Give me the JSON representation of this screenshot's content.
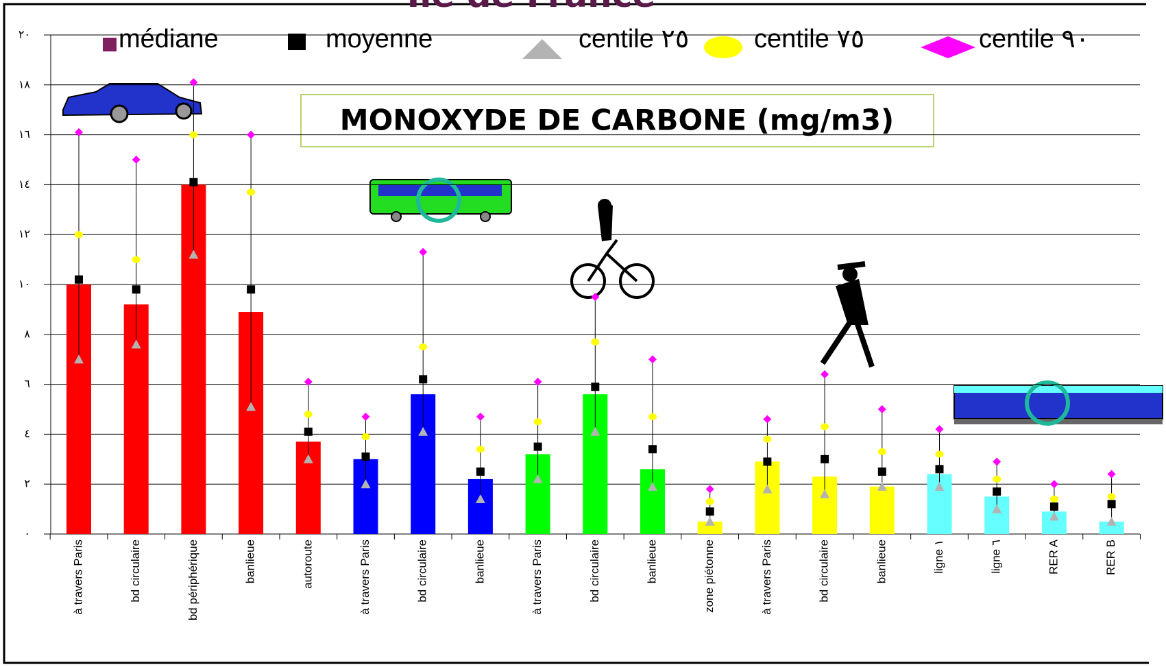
{
  "chart_data": {
    "type": "bar",
    "title": "Ile de France",
    "subtitle": "MONOXYDE DE CARBONE (mg/m3)",
    "categories": [
      "à travers Paris",
      "bd circulaire",
      "bd périphérique",
      "banlieue",
      "autoroute",
      "à travers Paris",
      "bd circulaire",
      "banlieue",
      "à travers Paris",
      "bd circulaire",
      "banlieue",
      "zone piétonne",
      "à travers Paris",
      "bd circulaire",
      "banlieue",
      "ligne ١",
      "ligne ٦",
      "RER A",
      "RER B"
    ],
    "bar_colors": [
      "#ff0000",
      "#ff0000",
      "#ff0000",
      "#ff0000",
      "#ff0000",
      "#0000ff",
      "#0000ff",
      "#0000ff",
      "#00ff00",
      "#00ff00",
      "#00ff00",
      "#ffff00",
      "#ffff00",
      "#ffff00",
      "#ffff00",
      "#66ffff",
      "#66ffff",
      "#66ffff",
      "#66ffff"
    ],
    "series": [
      {
        "name": "médiane",
        "color": "#7f1f5f",
        "marker": "bar",
        "values": [
          10.0,
          9.2,
          14.0,
          8.9,
          3.7,
          3.0,
          5.6,
          2.2,
          3.2,
          5.6,
          2.6,
          0.5,
          2.9,
          2.3,
          1.9,
          2.4,
          1.5,
          0.9,
          0.5
        ]
      },
      {
        "name": "moyenne",
        "color": "#000000",
        "marker": "square",
        "values": [
          10.2,
          9.8,
          14.1,
          9.8,
          4.1,
          3.1,
          6.2,
          2.5,
          3.5,
          5.9,
          3.4,
          0.9,
          2.9,
          3.0,
          2.5,
          2.6,
          1.7,
          1.1,
          1.2
        ]
      },
      {
        "name": "centile ٢٥",
        "color": "#b3b3b3",
        "marker": "triangle",
        "values": [
          7.0,
          7.6,
          11.2,
          5.1,
          3.0,
          2.0,
          4.1,
          1.4,
          2.2,
          4.1,
          1.9,
          0.5,
          1.8,
          1.6,
          1.9,
          1.9,
          1.0,
          0.7,
          0.5
        ]
      },
      {
        "name": "centile ٧٥",
        "color": "#ffff00",
        "marker": "circle",
        "values": [
          12.0,
          11.0,
          16.0,
          13.7,
          4.8,
          3.9,
          7.5,
          3.4,
          4.5,
          7.7,
          4.7,
          1.3,
          3.8,
          4.3,
          3.3,
          3.2,
          2.2,
          1.4,
          1.5
        ]
      },
      {
        "name": "centile ٩٠",
        "color": "#ff00ff",
        "marker": "diamond",
        "values": [
          16.1,
          15.0,
          18.1,
          16.0,
          6.1,
          4.7,
          11.3,
          4.7,
          6.1,
          9.5,
          7.0,
          1.8,
          4.6,
          6.4,
          5.0,
          4.2,
          2.9,
          2.0,
          2.4
        ]
      }
    ],
    "ylim": [
      0,
      20
    ],
    "yticks": [
      {
        "value": 0,
        "label": "٠"
      },
      {
        "value": 2,
        "label": "٢"
      },
      {
        "value": 4,
        "label": "٤"
      },
      {
        "value": 6,
        "label": "٦"
      },
      {
        "value": 8,
        "label": "٨"
      },
      {
        "value": 10,
        "label": "١٠"
      },
      {
        "value": 12,
        "label": "١٢"
      },
      {
        "value": 14,
        "label": "١٤"
      },
      {
        "value": 16,
        "label": "١٦"
      },
      {
        "value": 18,
        "label": "١٨"
      },
      {
        "value": 20,
        "label": "٢٠"
      }
    ],
    "grid": true
  }
}
